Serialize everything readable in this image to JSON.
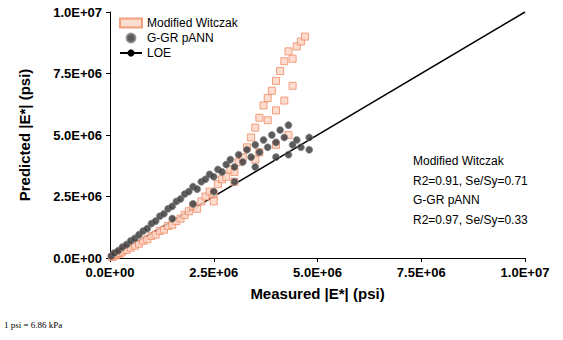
{
  "chart_data": {
    "type": "scatter",
    "x_label": "Measured |E*| (psi)",
    "y_label": "Predicted |E*| (psi)",
    "xlim": [
      0,
      10000000
    ],
    "ylim": [
      0,
      10000000
    ],
    "xticks": [
      {
        "value": 0,
        "label": "0.0E+00"
      },
      {
        "value": 2500000,
        "label": "2.5E+06"
      },
      {
        "value": 5000000,
        "label": "5.0E+06"
      },
      {
        "value": 7500000,
        "label": "7.5E+06"
      },
      {
        "value": 10000000,
        "label": "1.0E+07"
      }
    ],
    "yticks": [
      {
        "value": 0,
        "label": "0.0E+00"
      },
      {
        "value": 2500000,
        "label": "2.5E+06"
      },
      {
        "value": 5000000,
        "label": "5.0E+06"
      },
      {
        "value": 7500000,
        "label": "7.5E+06"
      },
      {
        "value": 10000000,
        "label": "1.0E+07"
      }
    ],
    "grid": false,
    "legend": "upper left",
    "annotations": [
      "Modified Witczak",
      "R2=0.91, Se/Sy=0.71",
      "G-GR pANN",
      "R2=0.97, Se/Sy=0.33"
    ],
    "footnote": "1 psi = 6.86 kPa",
    "series": [
      {
        "name": "Modified Witczak",
        "type": "scatter",
        "marker": "square",
        "color": "#f08a63",
        "x": [
          50000,
          100000,
          150000,
          200000,
          250000,
          300000,
          400000,
          500000,
          600000,
          700000,
          800000,
          900000,
          1000000,
          1100000,
          1200000,
          1300000,
          1400000,
          1500000,
          1600000,
          1700000,
          1800000,
          1900000,
          2000000,
          2100000,
          2200000,
          2300000,
          2400000,
          2500000,
          2600000,
          2700000,
          2800000,
          2900000,
          3000000,
          3100000,
          3200000,
          3300000,
          3400000,
          3500000,
          3600000,
          3700000,
          3800000,
          3900000,
          4000000,
          4100000,
          4200000,
          4300000,
          4400000,
          4500000,
          4600000,
          4700000,
          2500000,
          3000000,
          3500000,
          4000000,
          4300000,
          3800000,
          3600000,
          4200000,
          4400000,
          4000000
        ],
        "values": [
          40000,
          90000,
          120000,
          170000,
          200000,
          260000,
          330000,
          420000,
          500000,
          580000,
          700000,
          760000,
          900000,
          950000,
          1100000,
          1150000,
          1300000,
          1350000,
          1500000,
          1600000,
          1750000,
          1900000,
          2100000,
          2000000,
          2300000,
          2500000,
          2700000,
          2600000,
          3000000,
          3200000,
          3300000,
          3600000,
          3500000,
          3900000,
          4100000,
          4500000,
          4900000,
          5300000,
          5700000,
          6200000,
          6500000,
          6800000,
          7200000,
          7600000,
          8000000,
          8400000,
          8100000,
          8600000,
          8800000,
          9000000,
          2300000,
          3100000,
          4000000,
          4600000,
          5000000,
          5600000,
          4300000,
          6400000,
          7000000,
          6000000
        ]
      },
      {
        "name": "G-GR pANN",
        "type": "scatter",
        "marker": "circle",
        "color": "#333333",
        "x": [
          30000,
          100000,
          200000,
          300000,
          400000,
          500000,
          600000,
          700000,
          800000,
          900000,
          1000000,
          1100000,
          1200000,
          1300000,
          1400000,
          1500000,
          1600000,
          1700000,
          1800000,
          1900000,
          2000000,
          2100000,
          2200000,
          2300000,
          2400000,
          2500000,
          2600000,
          2700000,
          2800000,
          2900000,
          3000000,
          3100000,
          3200000,
          3300000,
          3400000,
          3500000,
          3600000,
          3700000,
          3800000,
          3900000,
          4000000,
          4100000,
          4200000,
          4300000,
          4400000,
          4500000,
          4600000,
          4800000,
          1500000,
          2000000,
          2500000,
          3000000,
          3500000,
          4000000,
          4300000,
          4800000
        ],
        "values": [
          80000,
          200000,
          300000,
          450000,
          550000,
          700000,
          800000,
          950000,
          1100000,
          1200000,
          1400000,
          1500000,
          1700000,
          1800000,
          2000000,
          2100000,
          2300000,
          2400000,
          2600000,
          2700000,
          2900000,
          2800000,
          3100000,
          3200000,
          3400000,
          3300000,
          3600000,
          3500000,
          3800000,
          4000000,
          3700000,
          4200000,
          3900000,
          4400000,
          4100000,
          4600000,
          4300000,
          4800000,
          4500000,
          5000000,
          4700000,
          5200000,
          4900000,
          5400000,
          4600000,
          4800000,
          4500000,
          4900000,
          1600000,
          2200000,
          2700000,
          3100000,
          3700000,
          4100000,
          4200000,
          4400000
        ]
      },
      {
        "name": "LOE",
        "type": "line",
        "line_style": "solid",
        "color": "#000000",
        "x": [
          0,
          10000000
        ],
        "values": [
          0,
          10000000
        ]
      }
    ]
  }
}
